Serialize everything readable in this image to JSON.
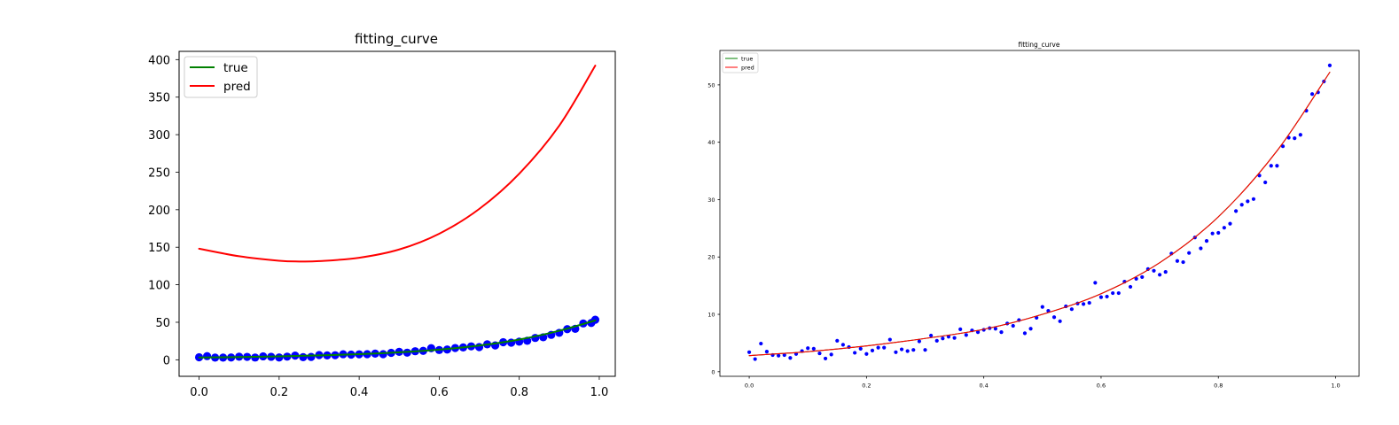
{
  "colors": {
    "true": "#008000",
    "pred": "#ff0000",
    "points": "#0000ff",
    "axes": "#000000"
  },
  "chart_data": [
    {
      "type": "line",
      "title": "fitting_curve",
      "xlabel": "",
      "ylabel": "",
      "xlim": [
        -0.05,
        1.04
      ],
      "ylim": [
        -22,
        411
      ],
      "x_ticks": [
        0.0,
        0.2,
        0.4,
        0.6,
        0.8,
        1.0
      ],
      "y_ticks": [
        0,
        50,
        100,
        150,
        200,
        250,
        300,
        350,
        400
      ],
      "x_tick_labels": [
        "0.0",
        "0.2",
        "0.4",
        "0.6",
        "0.8",
        "1.0"
      ],
      "y_tick_labels": [
        "0",
        "50",
        "100",
        "150",
        "200",
        "250",
        "300",
        "350",
        "400"
      ],
      "grid": false,
      "legend": "upper-left",
      "legend_entries": [
        "true",
        "pred"
      ],
      "series": [
        {
          "name": "true",
          "x": [
            0.0,
            0.1,
            0.2,
            0.3,
            0.4,
            0.5,
            0.6,
            0.7,
            0.8,
            0.9,
            0.99
          ],
          "values": [
            3.0,
            3.6,
            4.6,
            5.9,
            7.5,
            10.0,
            13.6,
            19.0,
            27.0,
            38.7,
            52.5
          ]
        },
        {
          "name": "pred",
          "x": [
            0.0,
            0.1,
            0.2,
            0.25,
            0.3,
            0.4,
            0.5,
            0.6,
            0.7,
            0.8,
            0.9,
            0.99
          ],
          "values": [
            148,
            138,
            132,
            131,
            131.5,
            136,
            147,
            168,
            201,
            248,
            312,
            392
          ]
        }
      ],
      "scatter": {
        "x": [
          0.0,
          0.02,
          0.04,
          0.06,
          0.08,
          0.1,
          0.12,
          0.14,
          0.16,
          0.18,
          0.2,
          0.22,
          0.24,
          0.26,
          0.28,
          0.3,
          0.32,
          0.34,
          0.36,
          0.38,
          0.4,
          0.42,
          0.44,
          0.46,
          0.48,
          0.5,
          0.52,
          0.54,
          0.56,
          0.58,
          0.6,
          0.62,
          0.64,
          0.66,
          0.68,
          0.7,
          0.72,
          0.74,
          0.76,
          0.78,
          0.8,
          0.82,
          0.84,
          0.86,
          0.88,
          0.9,
          0.92,
          0.94,
          0.96,
          0.98,
          0.99
        ],
        "values": [
          3.4,
          4.9,
          2.9,
          2.9,
          3.1,
          4.1,
          3.9,
          3.0,
          4.6,
          4.0,
          3.1,
          4.2,
          5.6,
          3.5,
          3.8,
          6.3,
          5.9,
          6.1,
          7.4,
          6.9,
          7.3,
          7.5,
          8.2,
          7.5,
          9.3,
          10.6,
          9.5,
          11.4,
          11.9,
          15.5,
          13.0,
          13.7,
          15.7,
          16.5,
          17.9,
          16.9,
          20.6,
          19.1,
          23.4,
          22.8,
          24.2,
          25.3,
          29.1,
          30.0,
          33.2,
          35.9,
          40.8,
          41.3,
          48.4,
          49.1,
          53.4
        ]
      }
    },
    {
      "type": "line",
      "title": "fitting_curve",
      "xlabel": "",
      "ylabel": "",
      "xlim": [
        -0.05,
        1.04
      ],
      "ylim": [
        -0.8,
        56
      ],
      "x_ticks": [
        0.0,
        0.2,
        0.4,
        0.6,
        0.8,
        1.0
      ],
      "y_ticks": [
        0,
        10,
        20,
        30,
        40,
        50
      ],
      "x_tick_labels": [
        "0.0",
        "0.2",
        "0.4",
        "0.6",
        "0.8",
        "1.0"
      ],
      "y_tick_labels": [
        "0",
        "10",
        "20",
        "30",
        "40",
        "50"
      ],
      "grid": false,
      "legend": "upper-left",
      "legend_entries": [
        "true",
        "pred"
      ],
      "series": [
        {
          "name": "true",
          "x": [
            0.0,
            0.1,
            0.2,
            0.3,
            0.4,
            0.5,
            0.6,
            0.7,
            0.8,
            0.9,
            0.99
          ],
          "values": [
            2.8,
            3.5,
            4.5,
            5.8,
            7.4,
            10.0,
            13.6,
            19.0,
            27.0,
            38.5,
            52.2
          ]
        },
        {
          "name": "pred",
          "x": [
            0.0,
            0.1,
            0.2,
            0.3,
            0.4,
            0.5,
            0.6,
            0.7,
            0.8,
            0.9,
            0.99
          ],
          "values": [
            2.8,
            3.5,
            4.5,
            5.8,
            7.4,
            10.0,
            13.6,
            19.0,
            27.0,
            38.5,
            52.2
          ]
        }
      ],
      "scatter": {
        "x": [
          0.0,
          0.01,
          0.02,
          0.03,
          0.04,
          0.05,
          0.06,
          0.07,
          0.08,
          0.09,
          0.1,
          0.11,
          0.12,
          0.13,
          0.14,
          0.15,
          0.16,
          0.17,
          0.18,
          0.19,
          0.2,
          0.21,
          0.22,
          0.23,
          0.24,
          0.25,
          0.26,
          0.27,
          0.28,
          0.29,
          0.3,
          0.31,
          0.32,
          0.33,
          0.34,
          0.35,
          0.36,
          0.37,
          0.38,
          0.39,
          0.4,
          0.41,
          0.42,
          0.43,
          0.44,
          0.45,
          0.46,
          0.47,
          0.48,
          0.49,
          0.5,
          0.51,
          0.52,
          0.53,
          0.54,
          0.55,
          0.56,
          0.57,
          0.58,
          0.59,
          0.6,
          0.61,
          0.62,
          0.63,
          0.64,
          0.65,
          0.66,
          0.67,
          0.68,
          0.69,
          0.7,
          0.71,
          0.72,
          0.73,
          0.74,
          0.75,
          0.76,
          0.77,
          0.78,
          0.79,
          0.8,
          0.81,
          0.82,
          0.83,
          0.84,
          0.85,
          0.86,
          0.87,
          0.88,
          0.89,
          0.9,
          0.91,
          0.92,
          0.93,
          0.94,
          0.95,
          0.96,
          0.97,
          0.98,
          0.99
        ],
        "values": [
          3.4,
          2.2,
          4.9,
          3.5,
          2.9,
          2.8,
          2.9,
          2.4,
          3.1,
          3.6,
          4.1,
          4.0,
          3.2,
          2.3,
          3.0,
          5.4,
          4.7,
          4.3,
          3.3,
          4.0,
          3.1,
          3.7,
          4.2,
          4.2,
          5.6,
          3.4,
          3.9,
          3.6,
          3.8,
          5.3,
          3.8,
          6.3,
          5.4,
          5.8,
          6.1,
          5.9,
          7.4,
          6.4,
          7.2,
          6.9,
          7.3,
          7.6,
          7.5,
          6.9,
          8.4,
          8.0,
          9.0,
          6.7,
          7.5,
          9.4,
          11.3,
          10.6,
          9.5,
          8.8,
          11.4,
          10.9,
          11.9,
          11.8,
          12.0,
          15.5,
          13.0,
          13.1,
          13.7,
          13.7,
          15.7,
          14.8,
          16.2,
          16.5,
          17.9,
          17.6,
          16.9,
          17.4,
          20.6,
          19.3,
          19.1,
          20.7,
          23.4,
          21.5,
          22.8,
          24.1,
          24.2,
          25.1,
          25.8,
          28.0,
          29.1,
          29.7,
          30.1,
          34.2,
          33.0,
          35.9,
          35.9,
          39.3,
          40.8,
          40.7,
          41.3,
          45.5,
          48.4,
          48.7,
          50.6,
          53.4
        ]
      }
    }
  ]
}
